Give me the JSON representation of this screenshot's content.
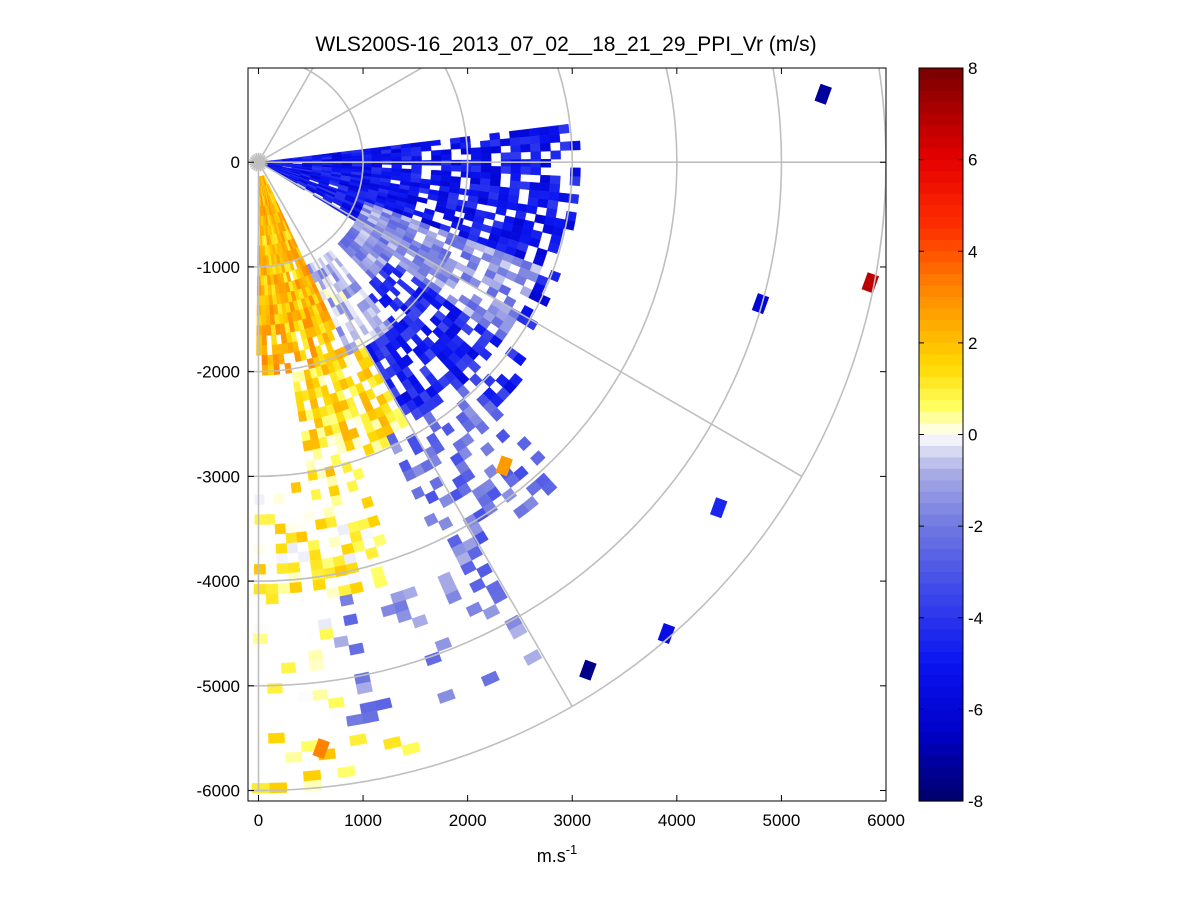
{
  "chart_data": {
    "type": "heatmap",
    "subtype": "polar-ppi-scan",
    "title": "WLS200S-16_2013_07_02__18_21_29_PPI_Vr (m/s)",
    "xlabel": "m.s",
    "xlabel_superscript": "-1",
    "ylabel": "",
    "xlim": [
      -100,
      6000
    ],
    "ylim": [
      -6100,
      900
    ],
    "x_ticks": [
      0,
      1000,
      2000,
      3000,
      4000,
      5000,
      6000
    ],
    "x_tick_labels": [
      "0",
      "1000",
      "2000",
      "3000",
      "4000",
      "5000",
      "6000"
    ],
    "y_ticks": [
      0,
      -1000,
      -2000,
      -3000,
      -4000,
      -5000,
      -6000
    ],
    "y_tick_labels": [
      "0",
      "-1000",
      "-2000",
      "-3000",
      "-4000",
      "-5000",
      "-6000"
    ],
    "polar_grid": {
      "range_rings": [
        1000,
        2000,
        3000,
        4000,
        5000,
        6000
      ],
      "spoke_angles_deg": [
        60,
        30,
        0,
        -30,
        -60,
        -90
      ]
    },
    "scan_sector": {
      "azimuth_start_deg": 7,
      "azimuth_end_deg": -91,
      "max_range": 6000
    },
    "colorbar": {
      "limits": [
        -8,
        8
      ],
      "ticks": [
        8,
        6,
        4,
        2,
        0,
        -2,
        -4,
        -6,
        -8
      ],
      "tick_labels": [
        "8",
        "6",
        "4",
        "2",
        "0",
        "-2",
        "-4",
        "-6",
        "-8"
      ],
      "colormap": "blue-white-red",
      "color_stops": [
        {
          "value": -8,
          "color": "#00006a"
        },
        {
          "value": -6.5,
          "color": "#0000c8"
        },
        {
          "value": -5,
          "color": "#0a14f0"
        },
        {
          "value": -3.5,
          "color": "#3c46eb"
        },
        {
          "value": -2,
          "color": "#7078e0"
        },
        {
          "value": -0.8,
          "color": "#aaaee6"
        },
        {
          "value": 0,
          "color": "#ffffff"
        },
        {
          "value": 0.6,
          "color": "#ffff60"
        },
        {
          "value": 1.5,
          "color": "#ffd800"
        },
        {
          "value": 3,
          "color": "#ff9000"
        },
        {
          "value": 4.5,
          "color": "#ff3000"
        },
        {
          "value": 6,
          "color": "#e60000"
        },
        {
          "value": 8,
          "color": "#780000"
        }
      ]
    },
    "velocity_field_regions": [
      {
        "azimuth_range_deg": [
          7,
          -30
        ],
        "range_m": [
          0,
          3000
        ],
        "vr_m_s": -5.0
      },
      {
        "azimuth_range_deg": [
          -20,
          -45
        ],
        "range_m": [
          1000,
          2800
        ],
        "vr_m_s": -1.5
      },
      {
        "azimuth_range_deg": [
          -35,
          -60
        ],
        "range_m": [
          1500,
          3200
        ],
        "vr_m_s": -4.5
      },
      {
        "azimuth_range_deg": [
          -50,
          -70
        ],
        "range_m": [
          1000,
          2000
        ],
        "vr_m_s": -0.8
      },
      {
        "azimuth_range_deg": [
          -65,
          -90
        ],
        "range_m": [
          100,
          2000
        ],
        "vr_m_s": 2.0
      },
      {
        "azimuth_range_deg": [
          -60,
          -80
        ],
        "range_m": [
          2000,
          3000
        ],
        "vr_m_s": 1.2
      },
      {
        "azimuth_range_deg": [
          -45,
          -65
        ],
        "range_m": [
          2800,
          4200
        ],
        "vr_m_s": -2.2
      },
      {
        "azimuth_range_deg": [
          -70,
          -90
        ],
        "range_m": [
          3000,
          6000
        ],
        "vr_m_s": 0.8
      },
      {
        "azimuth_range_deg": [
          -60,
          -80
        ],
        "range_m": [
          4200,
          5500
        ],
        "vr_m_s": -1.8
      }
    ],
    "isolated_cells": [
      {
        "x": 5400,
        "y": 650,
        "vr_m_s": -7.2
      },
      {
        "x": 5850,
        "y": -1150,
        "vr_m_s": 6.8
      },
      {
        "x": 3150,
        "y": -4850,
        "vr_m_s": -7.5
      },
      {
        "x": 2350,
        "y": -2900,
        "vr_m_s": 2.8
      },
      {
        "x": 4800,
        "y": -1350,
        "vr_m_s": -6.0
      },
      {
        "x": 3900,
        "y": -4500,
        "vr_m_s": -5.5
      },
      {
        "x": 600,
        "y": -5600,
        "vr_m_s": 3.2
      },
      {
        "x": 4400,
        "y": -3300,
        "vr_m_s": -4.5
      }
    ]
  }
}
